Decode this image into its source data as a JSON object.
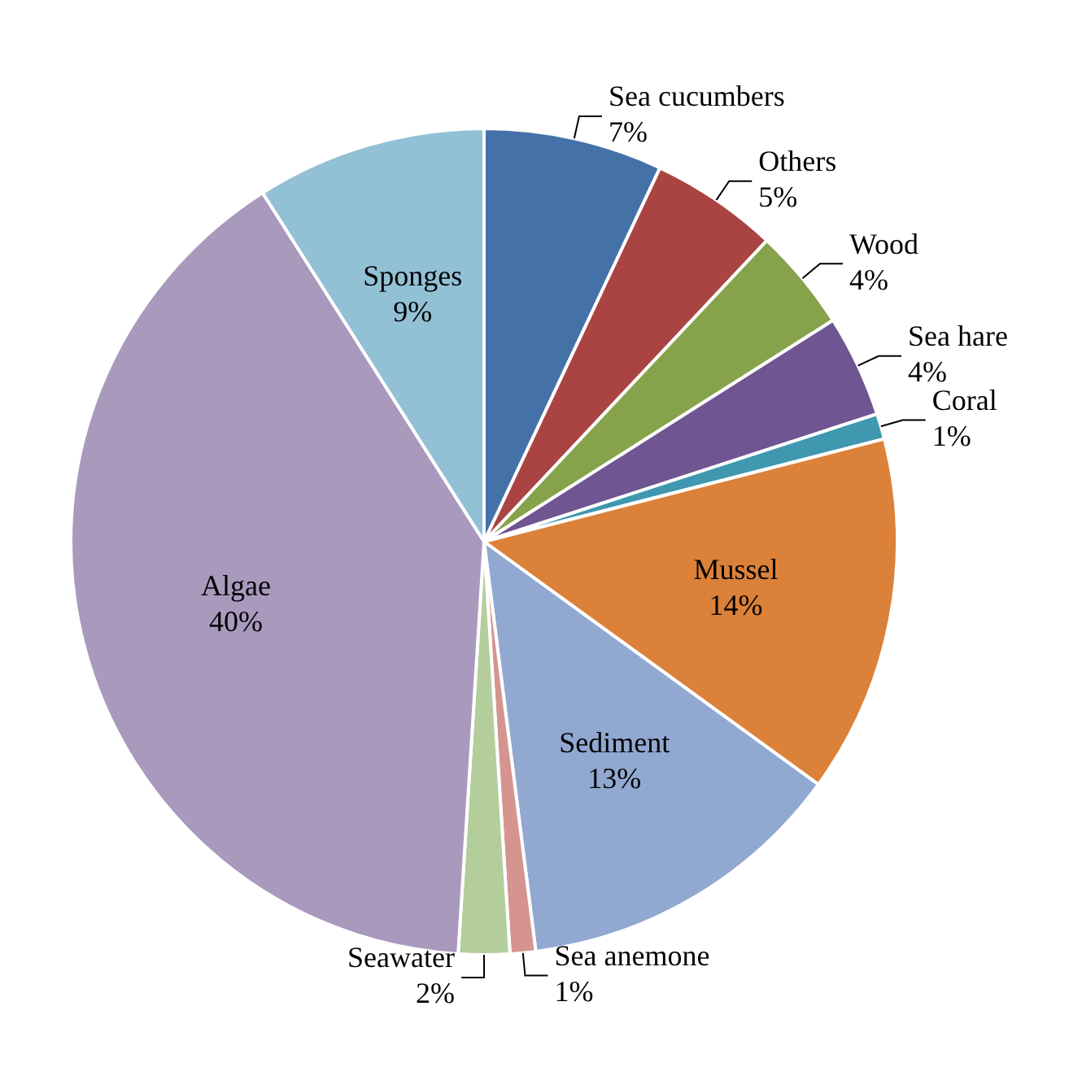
{
  "chart_data": {
    "type": "pie",
    "categories": [
      "Sea cucumbers",
      "Others",
      "Wood",
      "Sea hare",
      "Coral",
      "Mussel",
      "Sediment",
      "Sea anemone",
      "Seawater",
      "Algae",
      "Sponges"
    ],
    "values": [
      7,
      5,
      4,
      4,
      1,
      14,
      13,
      1,
      2,
      40,
      9
    ],
    "colors": [
      "#4472a8",
      "#a94442",
      "#86a34c",
      "#6f5591",
      "#3f98b0",
      "#db8139",
      "#91a8d0",
      "#d59490",
      "#b4ce9b",
      "#a899bd",
      "#92c0d4"
    ],
    "value_labels": [
      "7%",
      "5%",
      "4%",
      "4%",
      "1%",
      "14%",
      "13%",
      "1%",
      "2%",
      "40%",
      "9%"
    ]
  }
}
